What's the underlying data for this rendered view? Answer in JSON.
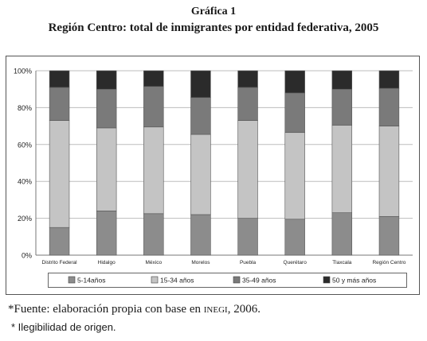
{
  "figure": {
    "label": "Gráfica 1",
    "title": "Región Centro: total de inmigrantes por entidad federativa, 2005"
  },
  "chart_data": {
    "type": "bar",
    "stacked": true,
    "percent": true,
    "categories": [
      "Distrito Federal",
      "Hidalgo",
      "México",
      "Morelos",
      "Puebla",
      "Querétaro",
      "Tlaxcala",
      "Región Centro"
    ],
    "series": [
      {
        "name": "5-14años",
        "color": "#8c8c8c",
        "values": [
          15,
          24,
          22.5,
          22,
          20,
          19.5,
          23,
          21
        ]
      },
      {
        "name": "15-34 años",
        "color": "#c4c4c4",
        "values": [
          58,
          45,
          47,
          43.5,
          53,
          47,
          47.5,
          49
        ]
      },
      {
        "name": "35-49 años",
        "color": "#7a7a7a",
        "values": [
          18,
          21,
          22,
          20,
          18,
          21.5,
          19.5,
          20.5
        ]
      },
      {
        "name": "50 y más años",
        "color": "#2b2b2b",
        "values": [
          9,
          10,
          8.5,
          14.5,
          9,
          12,
          10,
          9.5
        ]
      }
    ],
    "y_ticks": [
      "0%",
      "20%",
      "40%",
      "60%",
      "80%",
      "100%"
    ],
    "ylim": [
      0,
      100
    ],
    "grid": true,
    "legend_position": "bottom",
    "xlabel": "",
    "ylabel": ""
  },
  "footer": {
    "source_prefix": "*Fuente: elaboración propia con base en ",
    "source_org": "inegi",
    "source_suffix": ", 2006.",
    "note": "* Ilegibilidad de origen."
  }
}
